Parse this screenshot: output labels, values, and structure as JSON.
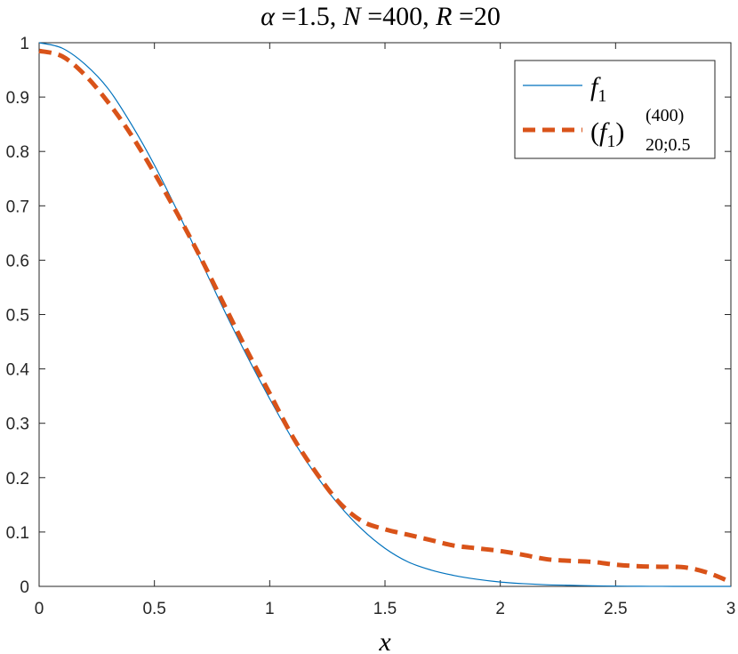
{
  "chart_data": {
    "type": "line",
    "title": {
      "alpha_sym": "α",
      "alpha_eq": " =1.5, ",
      "n_sym": "N",
      "n_eq": " =400, ",
      "r_sym": "R",
      "r_eq": " =20"
    },
    "xlabel": "x",
    "ylabel": "",
    "xlim": [
      0,
      3
    ],
    "ylim": [
      0,
      1
    ],
    "xticks": [
      0,
      0.5,
      1,
      1.5,
      2,
      2.5,
      3
    ],
    "xtick_labels": [
      "0",
      "0.5",
      "1",
      "1.5",
      "2",
      "2.5",
      "3"
    ],
    "yticks": [
      0,
      0.1,
      0.2,
      0.3,
      0.4,
      0.5,
      0.6,
      0.7,
      0.8,
      0.9,
      1
    ],
    "ytick_labels": [
      "0",
      "0.1",
      "0.2",
      "0.3",
      "0.4",
      "0.5",
      "0.6",
      "0.7",
      "0.8",
      "0.9",
      "1"
    ],
    "grid": false,
    "legend_position": "top-right",
    "series": [
      {
        "name": "f1",
        "legend": {
          "base": "f",
          "sub": "1"
        },
        "color": "#0072BD",
        "style": "solid",
        "x": [
          0,
          0.1,
          0.2,
          0.3,
          0.4,
          0.5,
          0.6,
          0.7,
          0.8,
          0.9,
          1.0,
          1.1,
          1.2,
          1.3,
          1.4,
          1.5,
          1.6,
          1.7,
          1.8,
          1.9,
          2.0,
          2.1,
          2.2,
          2.3,
          2.4,
          2.5,
          2.6,
          2.7,
          2.8,
          2.9,
          3.0
        ],
        "y": [
          1.0,
          0.99,
          0.96,
          0.915,
          0.85,
          0.775,
          0.69,
          0.6,
          0.51,
          0.425,
          0.345,
          0.27,
          0.205,
          0.15,
          0.105,
          0.07,
          0.045,
          0.03,
          0.02,
          0.013,
          0.008,
          0.005,
          0.003,
          0.002,
          0.001,
          0.0005,
          0.0002,
          0.0001,
          0.0,
          0.0,
          0.0
        ]
      },
      {
        "name": "(f1)^(400)_20;0.5",
        "legend": {
          "open": "(",
          "base": "f",
          "sub": "1",
          "close": ")",
          "sup": "(400)",
          "sub2": "20;0.5"
        },
        "color": "#D95319",
        "style": "dashed",
        "x": [
          0,
          0.1,
          0.2,
          0.3,
          0.4,
          0.5,
          0.6,
          0.7,
          0.8,
          0.9,
          1.0,
          1.1,
          1.2,
          1.3,
          1.4,
          1.5,
          1.6,
          1.7,
          1.8,
          1.9,
          2.0,
          2.1,
          2.2,
          2.3,
          2.4,
          2.5,
          2.6,
          2.7,
          2.8,
          2.9,
          3.0
        ],
        "y": [
          0.985,
          0.975,
          0.94,
          0.89,
          0.83,
          0.76,
          0.685,
          0.605,
          0.52,
          0.435,
          0.355,
          0.275,
          0.21,
          0.155,
          0.12,
          0.105,
          0.095,
          0.085,
          0.075,
          0.07,
          0.065,
          0.058,
          0.05,
          0.047,
          0.045,
          0.04,
          0.037,
          0.036,
          0.035,
          0.025,
          0.008
        ]
      }
    ]
  }
}
